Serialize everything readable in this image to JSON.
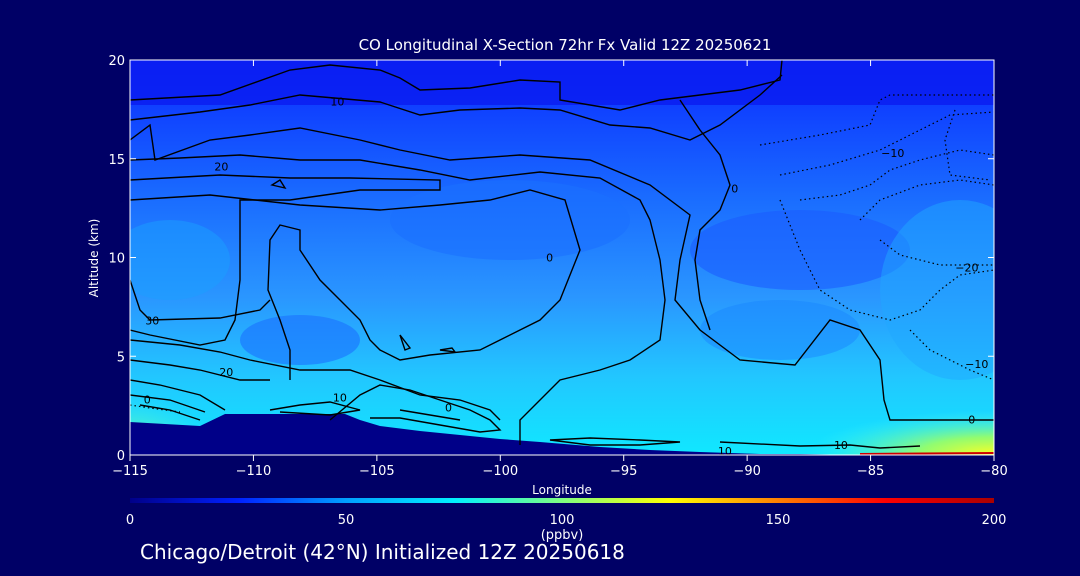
{
  "chart_data": {
    "type": "heatmap",
    "title": "CO Longitudinal X-Section 72hr  Fx Valid 12Z 20250621",
    "xlabel": "Longitude",
    "ylabel": "Altitude (km)",
    "xlim": [
      -115,
      -80
    ],
    "ylim": [
      0,
      20
    ],
    "x_ticks": [
      -115,
      -110,
      -105,
      -100,
      -95,
      -90,
      -85,
      -80
    ],
    "x_tick_labels": [
      "−115",
      "−110",
      "−105",
      "−100",
      "−95",
      "−90",
      "−85",
      "−80"
    ],
    "y_ticks": [
      0,
      5,
      10,
      15,
      20
    ],
    "y_tick_labels": [
      "0",
      "5",
      "10",
      "15",
      "20"
    ],
    "colorbar": {
      "min": 0,
      "max": 200,
      "ticks": [
        0,
        50,
        100,
        150,
        200
      ],
      "tick_labels": [
        "0",
        "50",
        "100",
        "150",
        "200"
      ],
      "unit_label": "(ppbv)",
      "colors": [
        "#000088",
        "#0020ff",
        "#00a0ff",
        "#00f0ff",
        "#80ff80",
        "#ffff00",
        "#ff8000",
        "#ff0000",
        "#aa0000"
      ]
    },
    "contour_labels": [
      {
        "text": "10",
        "lon": -106.6,
        "alt": 17.9
      },
      {
        "text": "20",
        "lon": -111.3,
        "alt": 14.6
      },
      {
        "text": "30",
        "lon": -114.1,
        "alt": 6.8
      },
      {
        "text": "20",
        "lon": -111.1,
        "alt": 4.2
      },
      {
        "text": "0",
        "lon": -114.3,
        "alt": 2.8
      },
      {
        "text": "10",
        "lon": -106.5,
        "alt": 2.9
      },
      {
        "text": "0",
        "lon": -102.1,
        "alt": 2.4
      },
      {
        "text": "0",
        "lon": -98.0,
        "alt": 10.0
      },
      {
        "text": "0",
        "lon": -90.5,
        "alt": 13.5
      },
      {
        "text": "−10",
        "lon": -84.1,
        "alt": 15.3
      },
      {
        "text": "−20",
        "lon": -81.1,
        "alt": 9.5
      },
      {
        "text": "−10",
        "lon": -80.7,
        "alt": 4.6
      },
      {
        "text": "0",
        "lon": -80.9,
        "alt": 1.8
      },
      {
        "text": "10",
        "lon": -90.9,
        "alt": 0.2
      },
      {
        "text": "10",
        "lon": -86.2,
        "alt": 0.5
      }
    ]
  },
  "subtitle": "Chicago/Detroit (42°N) Initialized 12Z 20250618"
}
